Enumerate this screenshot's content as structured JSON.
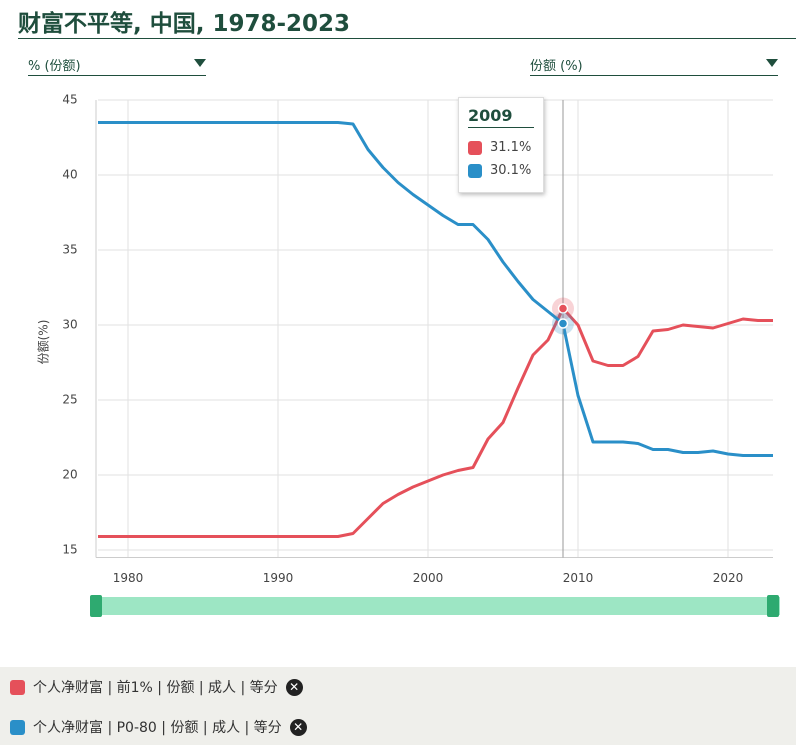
{
  "chart_data": {
    "type": "line",
    "title": "财富不平等, 中国, 1978-2023",
    "controls": [
      "% (份额)",
      "份额 (%)"
    ],
    "ylabel": "份额(%)",
    "x": [
      1978,
      1979,
      1980,
      1981,
      1982,
      1983,
      1984,
      1985,
      1986,
      1987,
      1988,
      1989,
      1990,
      1991,
      1992,
      1993,
      1994,
      1995,
      1996,
      1997,
      1998,
      1999,
      2000,
      2001,
      2002,
      2003,
      2004,
      2005,
      2006,
      2007,
      2008,
      2009,
      2010,
      2011,
      2012,
      2013,
      2014,
      2015,
      2016,
      2017,
      2018,
      2019,
      2020,
      2021,
      2022,
      2023
    ],
    "series": [
      {
        "name": "个人净财富 | 前1% | 份额 | 成人 | 等分",
        "color": "#e5505a",
        "values": [
          15.9,
          15.9,
          15.9,
          15.9,
          15.9,
          15.9,
          15.9,
          15.9,
          15.9,
          15.9,
          15.9,
          15.9,
          15.9,
          15.9,
          15.9,
          15.9,
          15.9,
          16.1,
          17.1,
          18.1,
          18.7,
          19.2,
          19.6,
          20.0,
          20.3,
          20.5,
          22.4,
          23.5,
          25.8,
          28.0,
          29.0,
          31.1,
          30.0,
          27.6,
          27.3,
          27.3,
          27.9,
          29.6,
          29.7,
          30.0,
          29.9,
          29.8,
          30.1,
          30.4,
          30.3,
          30.3
        ]
      },
      {
        "name": "个人净财富 | P0-80 | 份额 | 成人 | 等分",
        "color": "#2a8fc8",
        "values": [
          43.5,
          43.5,
          43.5,
          43.5,
          43.5,
          43.5,
          43.5,
          43.5,
          43.5,
          43.5,
          43.5,
          43.5,
          43.5,
          43.5,
          43.5,
          43.5,
          43.5,
          43.4,
          41.7,
          40.5,
          39.5,
          38.7,
          38.0,
          37.3,
          36.7,
          36.7,
          35.7,
          34.2,
          32.9,
          31.7,
          30.9,
          30.1,
          25.3,
          22.2,
          22.2,
          22.2,
          22.1,
          21.7,
          21.7,
          21.5,
          21.5,
          21.6,
          21.4,
          21.3,
          21.3,
          21.3
        ]
      }
    ],
    "xlim": [
      1978,
      2023
    ],
    "xticks": [
      1980,
      1990,
      2000,
      2010,
      2020
    ],
    "ylim": [
      14.5,
      45
    ],
    "yticks": [
      15,
      20,
      25,
      30,
      35,
      40,
      45
    ],
    "grid": true,
    "tooltip": {
      "x": 2009,
      "values": [
        31.1,
        30.1
      ],
      "value_labels": [
        "31.1%",
        "30.1%"
      ]
    }
  }
}
